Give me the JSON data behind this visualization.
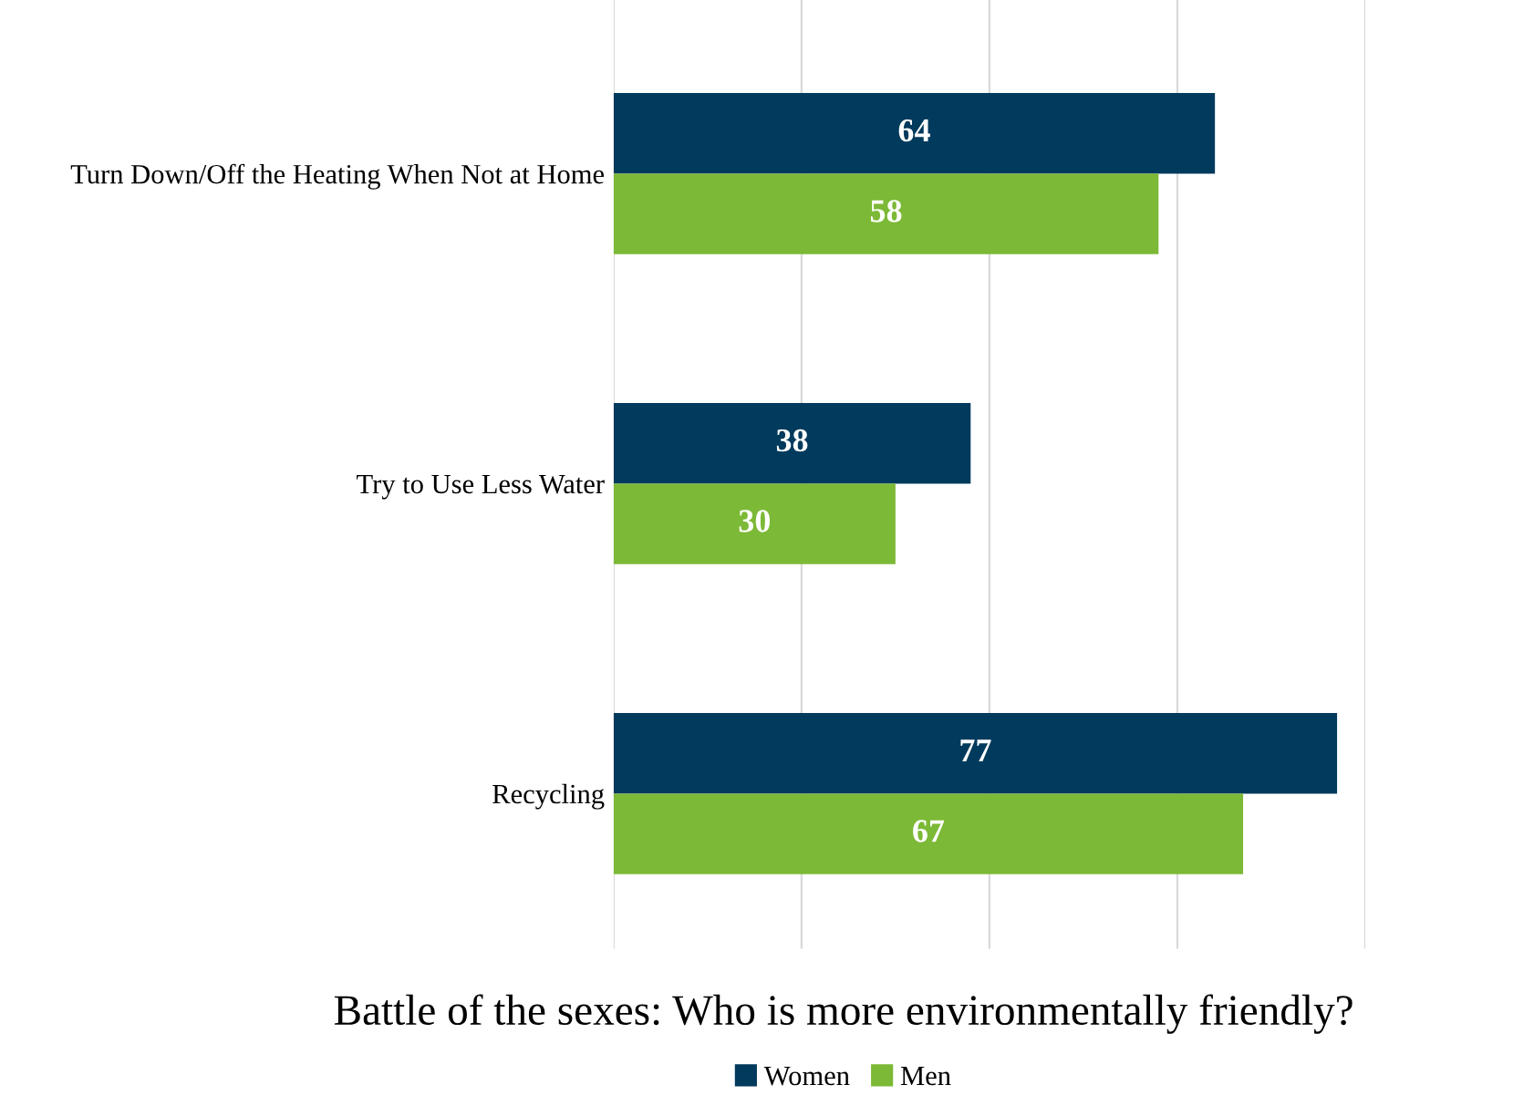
{
  "chart_data": {
    "type": "bar",
    "orientation": "horizontal",
    "title": "Battle of the sexes: Who is more environmentally friendly?",
    "categories": [
      "Turn Down/Off the Heating When Not at Home",
      "Try to Use Less Water",
      "Recycling"
    ],
    "series": [
      {
        "name": "Women",
        "color": "#003a5c",
        "values": [
          64,
          38,
          77
        ]
      },
      {
        "name": "Men",
        "color": "#7cb936",
        "values": [
          58,
          30,
          67
        ]
      }
    ],
    "xlim": [
      0,
      80
    ],
    "xticks": [
      {
        "value": 0,
        "label": null
      },
      {
        "value": 20,
        "label": null
      },
      {
        "value": 40,
        "label": null
      },
      {
        "value": 60,
        "label": null
      },
      {
        "value": 80,
        "label": null
      }
    ],
    "tick_labels": "y",
    "grid": "x",
    "data_labels": true,
    "legend": "bottom"
  }
}
